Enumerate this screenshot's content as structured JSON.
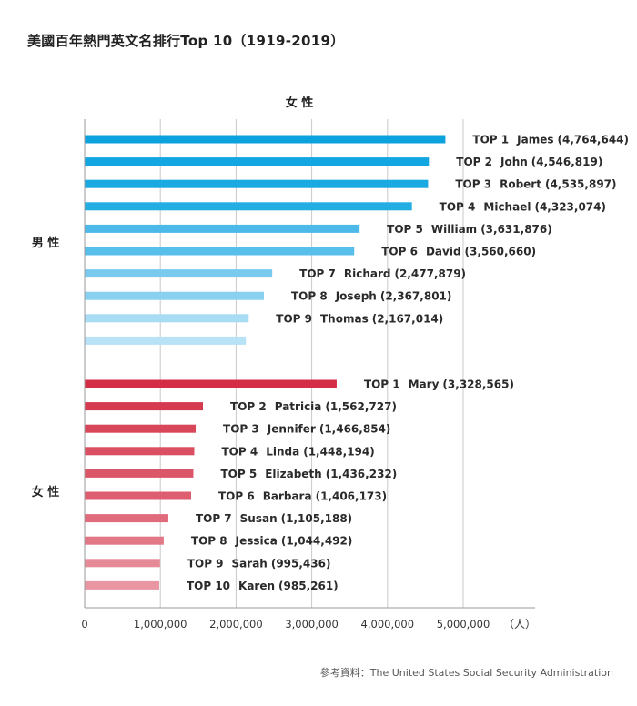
{
  "title": "美國百年熱門英文名排行Top 10（1919-2019）",
  "source": "參考資料：The United States Social Security Administration",
  "chart_data": {
    "type": "bar",
    "orientation": "horizontal",
    "top_label": "女 性",
    "unit": "（人）",
    "xlim": [
      0,
      5800000
    ],
    "xticks": [
      {
        "value": 0,
        "label": "0"
      },
      {
        "value": 1000000,
        "label": "1,000,000"
      },
      {
        "value": 2000000,
        "label": "2,000,000"
      },
      {
        "value": 3000000,
        "label": "3,000,000"
      },
      {
        "value": 4000000,
        "label": "4,000,000"
      },
      {
        "value": 5000000,
        "label": "5,000,000"
      }
    ],
    "grid": true,
    "groups": [
      {
        "name": "男 性",
        "colors": [
          "#0ba2de",
          "#13a6e0",
          "#1ba9e1",
          "#24ade3",
          "#4db9e8",
          "#58beea",
          "#79caee",
          "#8ad1f0",
          "#a7dcf4",
          "#b8e3f6"
        ],
        "bars": [
          {
            "rank": "TOP 1",
            "name": "James",
            "value": 4764644,
            "value_label": "(4,764,644)"
          },
          {
            "rank": "TOP 2",
            "name": "John",
            "value": 4546819,
            "value_label": "(4,546,819)"
          },
          {
            "rank": "TOP 3",
            "name": "Robert",
            "value": 4535897,
            "value_label": "(4,535,897)"
          },
          {
            "rank": "TOP 4",
            "name": "Michael",
            "value": 4323074,
            "value_label": "(4,323,074)"
          },
          {
            "rank": "TOP 5",
            "name": "William",
            "value": 3631876,
            "value_label": "(3,631,876)"
          },
          {
            "rank": "TOP 6",
            "name": "David",
            "value": 3560660,
            "value_label": "(3,560,660)"
          },
          {
            "rank": "TOP 7",
            "name": "Richard",
            "value": 2477879,
            "value_label": "(2,477,879)"
          },
          {
            "rank": "TOP 8",
            "name": "Joseph",
            "value": 2367801,
            "value_label": "(2,367,801)"
          },
          {
            "rank": "TOP 9",
            "name": "Thomas",
            "value": 2167014,
            "value_label": "(2,167,014)"
          },
          {
            "rank": "",
            "name": "",
            "value": 2130000,
            "value_label": ""
          }
        ]
      },
      {
        "name": "女 性",
        "colors": [
          "#d42e47",
          "#d53a50",
          "#d8465a",
          "#da4f62",
          "#dc566a",
          "#de5d70",
          "#e06b7c",
          "#e27786",
          "#e68a97",
          "#e996a2"
        ],
        "bars": [
          {
            "rank": "TOP 1",
            "name": "Mary",
            "value": 3328565,
            "value_label": "(3,328,565)"
          },
          {
            "rank": "TOP 2",
            "name": "Patricia",
            "value": 1562727,
            "value_label": "(1,562,727)"
          },
          {
            "rank": "TOP 3",
            "name": "Jennifer",
            "value": 1466854,
            "value_label": "(1,466,854)"
          },
          {
            "rank": "TOP 4",
            "name": "Linda",
            "value": 1448194,
            "value_label": "(1,448,194)"
          },
          {
            "rank": "TOP 5",
            "name": "Elizabeth",
            "value": 1436232,
            "value_label": "(1,436,232)"
          },
          {
            "rank": "TOP 6",
            "name": "Barbara",
            "value": 1406173,
            "value_label": "(1,406,173)"
          },
          {
            "rank": "TOP 7",
            "name": "Susan",
            "value": 1105188,
            "value_label": "(1,105,188)"
          },
          {
            "rank": "TOP 8",
            "name": "Jessica",
            "value": 1044492,
            "value_label": "(1,044,492)"
          },
          {
            "rank": "TOP 9",
            "name": "Sarah",
            "value": 995436,
            "value_label": "(995,436)"
          },
          {
            "rank": "TOP 10",
            "name": "Karen",
            "value": 985261,
            "value_label": "(985,261)"
          }
        ]
      }
    ]
  }
}
